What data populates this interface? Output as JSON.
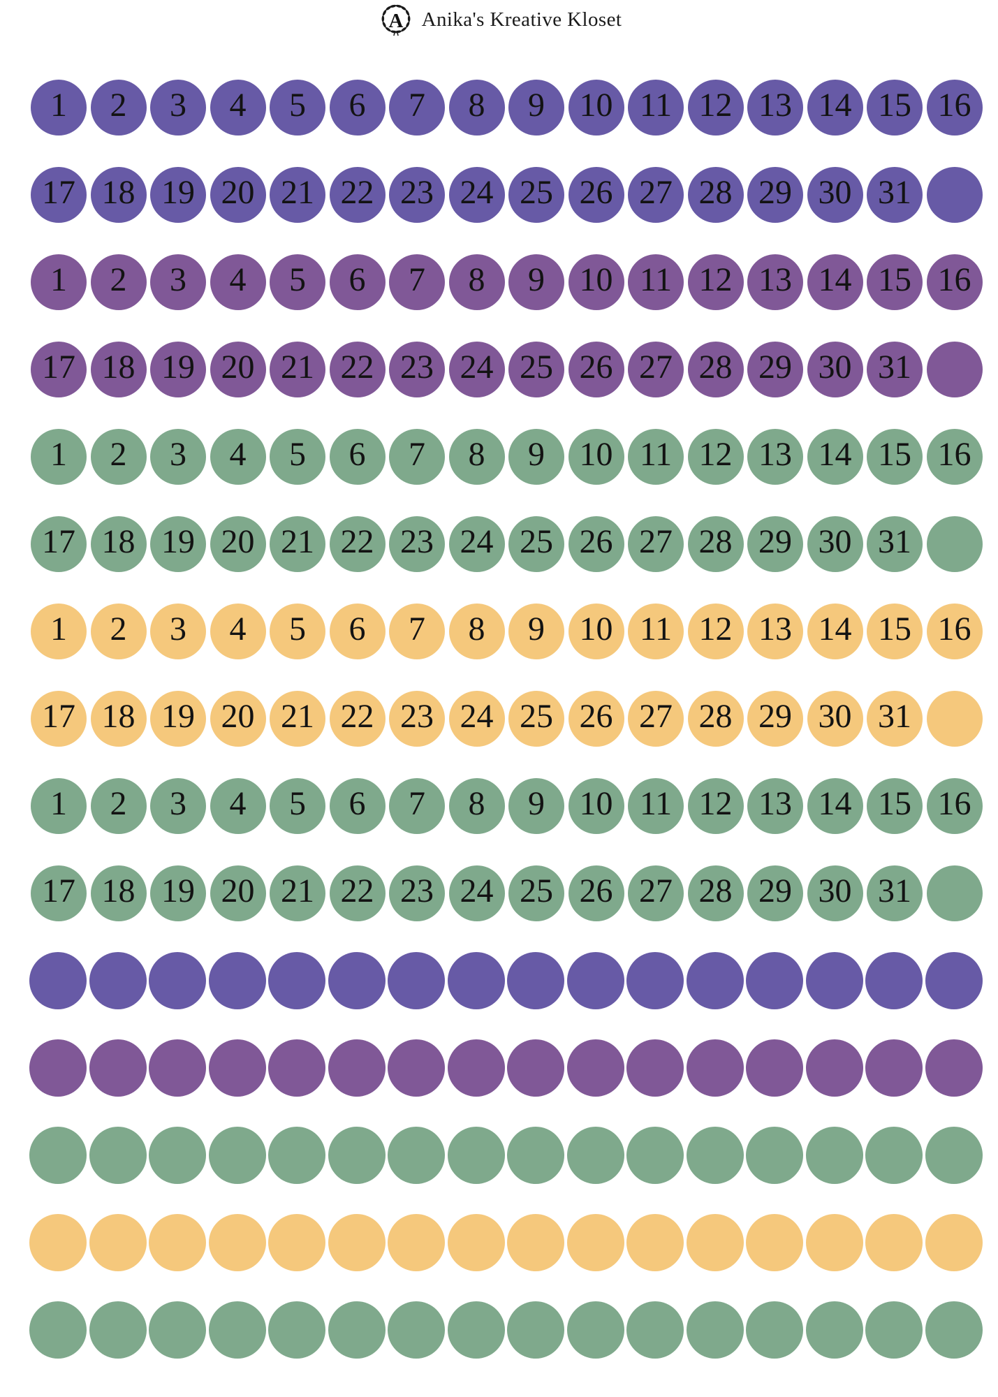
{
  "header": {
    "brand": "Anika's Kreative Kloset",
    "logo_letter": "A",
    "logo_icon": "laurel-wreath"
  },
  "palette": {
    "indigo": "#675AA6",
    "purple": "#805897",
    "green": "#7FA98C",
    "yellow": "#F5C87C",
    "number_ink": "#131313",
    "header_ink": "#1B1B1B",
    "background": "#FFFFFF"
  },
  "sheet": {
    "rows": [
      {
        "color": "indigo",
        "labels": [
          "1",
          "2",
          "3",
          "4",
          "5",
          "6",
          "7",
          "8",
          "9",
          "10",
          "11",
          "12",
          "13",
          "14",
          "15",
          "16"
        ]
      },
      {
        "color": "indigo",
        "labels": [
          "17",
          "18",
          "19",
          "20",
          "21",
          "22",
          "23",
          "24",
          "25",
          "26",
          "27",
          "28",
          "29",
          "30",
          "31",
          ""
        ]
      },
      {
        "color": "purple",
        "labels": [
          "1",
          "2",
          "3",
          "4",
          "5",
          "6",
          "7",
          "8",
          "9",
          "10",
          "11",
          "12",
          "13",
          "14",
          "15",
          "16"
        ]
      },
      {
        "color": "purple",
        "labels": [
          "17",
          "18",
          "19",
          "20",
          "21",
          "22",
          "23",
          "24",
          "25",
          "26",
          "27",
          "28",
          "29",
          "30",
          "31",
          ""
        ]
      },
      {
        "color": "green",
        "labels": [
          "1",
          "2",
          "3",
          "4",
          "5",
          "6",
          "7",
          "8",
          "9",
          "10",
          "11",
          "12",
          "13",
          "14",
          "15",
          "16"
        ]
      },
      {
        "color": "green",
        "labels": [
          "17",
          "18",
          "19",
          "20",
          "21",
          "22",
          "23",
          "24",
          "25",
          "26",
          "27",
          "28",
          "29",
          "30",
          "31",
          ""
        ]
      },
      {
        "color": "yellow",
        "labels": [
          "1",
          "2",
          "3",
          "4",
          "5",
          "6",
          "7",
          "8",
          "9",
          "10",
          "11",
          "12",
          "13",
          "14",
          "15",
          "16"
        ]
      },
      {
        "color": "yellow",
        "labels": [
          "17",
          "18",
          "19",
          "20",
          "21",
          "22",
          "23",
          "24",
          "25",
          "26",
          "27",
          "28",
          "29",
          "30",
          "31",
          ""
        ]
      },
      {
        "color": "green",
        "labels": [
          "1",
          "2",
          "3",
          "4",
          "5",
          "6",
          "7",
          "8",
          "9",
          "10",
          "11",
          "12",
          "13",
          "14",
          "15",
          "16"
        ]
      },
      {
        "color": "green",
        "labels": [
          "17",
          "18",
          "19",
          "20",
          "21",
          "22",
          "23",
          "24",
          "25",
          "26",
          "27",
          "28",
          "29",
          "30",
          "31",
          ""
        ]
      },
      {
        "color": "indigo",
        "labels": [
          "",
          "",
          "",
          "",
          "",
          "",
          "",
          "",
          "",
          "",
          "",
          "",
          "",
          "",
          "",
          ""
        ]
      },
      {
        "color": "purple",
        "labels": [
          "",
          "",
          "",
          "",
          "",
          "",
          "",
          "",
          "",
          "",
          "",
          "",
          "",
          "",
          "",
          ""
        ]
      },
      {
        "color": "green",
        "labels": [
          "",
          "",
          "",
          "",
          "",
          "",
          "",
          "",
          "",
          "",
          "",
          "",
          "",
          "",
          "",
          ""
        ]
      },
      {
        "color": "yellow",
        "labels": [
          "",
          "",
          "",
          "",
          "",
          "",
          "",
          "",
          "",
          "",
          "",
          "",
          "",
          "",
          "",
          ""
        ]
      },
      {
        "color": "green",
        "labels": [
          "",
          "",
          "",
          "",
          "",
          "",
          "",
          "",
          "",
          "",
          "",
          "",
          "",
          "",
          "",
          ""
        ]
      }
    ]
  }
}
